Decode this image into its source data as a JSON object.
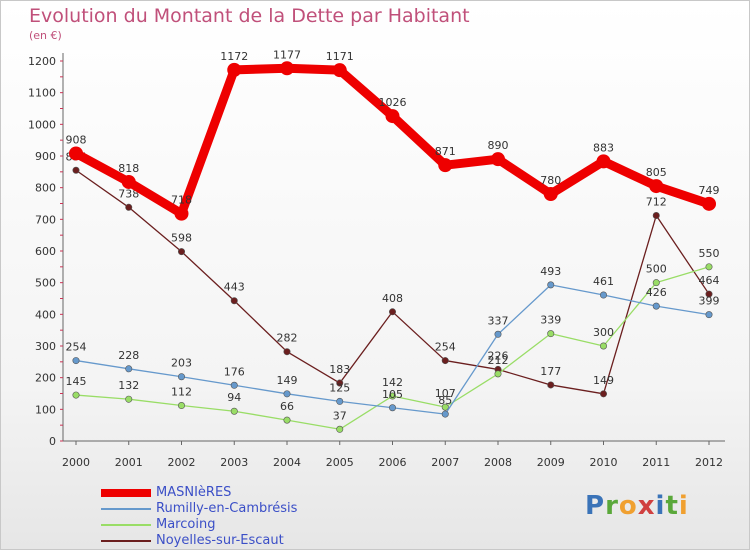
{
  "title": "Evolution du Montant de la Dette par Habitant",
  "subtitle": "(en €)",
  "chart_data": {
    "type": "line",
    "x": [
      "2000",
      "2001",
      "2002",
      "2003",
      "2004",
      "2005",
      "2006",
      "2007",
      "2008",
      "2009",
      "2010",
      "2011",
      "2012"
    ],
    "ylim": [
      0,
      1200
    ],
    "yticks": [
      0,
      100,
      200,
      300,
      400,
      500,
      600,
      700,
      800,
      900,
      1000,
      1100,
      1200
    ],
    "grid": false,
    "legend": "bottom-left",
    "series": [
      {
        "name": "Noyelles-sur-Escaut",
        "color": "#6b1f1f",
        "values": [
          855,
          738,
          598,
          443,
          282,
          183,
          408,
          254,
          226,
          177,
          149,
          712,
          464
        ],
        "labels": [
          "855",
          "738",
          "598",
          "443",
          "282",
          "183",
          "408",
          "254",
          "226",
          "177",
          "149",
          "712",
          "464"
        ]
      },
      {
        "name": "Marcoing",
        "color": "#99dd66",
        "values": [
          145,
          132,
          112,
          94,
          66,
          37,
          142,
          107,
          212,
          339,
          300,
          500,
          550
        ],
        "labels": [
          "145",
          "132",
          "112",
          "94",
          "66",
          "37",
          "142",
          "107",
          "212",
          "339",
          "300",
          "500",
          "550"
        ]
      },
      {
        "name": "Rumilly-en-Cambrésis",
        "color": "#6699cc",
        "values": [
          254,
          228,
          203,
          176,
          149,
          125,
          105,
          85,
          337,
          493,
          461,
          426,
          399
        ],
        "labels": [
          "254",
          "228",
          "203",
          "176",
          "149",
          "125",
          "105",
          "85",
          "337",
          "493",
          "461",
          "426",
          "399"
        ]
      },
      {
        "name": "MASNIèRES",
        "color": "#ee0000",
        "values": [
          908,
          818,
          718,
          1172,
          1177,
          1171,
          1026,
          871,
          890,
          780,
          883,
          805,
          749
        ],
        "labels": [
          "908",
          "818",
          "718",
          "1172",
          "1177",
          "1171",
          "1026",
          "871",
          "890",
          "780",
          "883",
          "805",
          "749"
        ]
      }
    ]
  },
  "legend": [
    {
      "label": "MASNIèRES",
      "color": "#ee0000"
    },
    {
      "label": "Rumilly-en-Cambrésis",
      "color": "#6699cc"
    },
    {
      "label": "Marcoing",
      "color": "#99dd66"
    },
    {
      "label": "Noyelles-sur-Escaut",
      "color": "#6b1f1f"
    }
  ],
  "logo": {
    "text": "Proxiti"
  }
}
